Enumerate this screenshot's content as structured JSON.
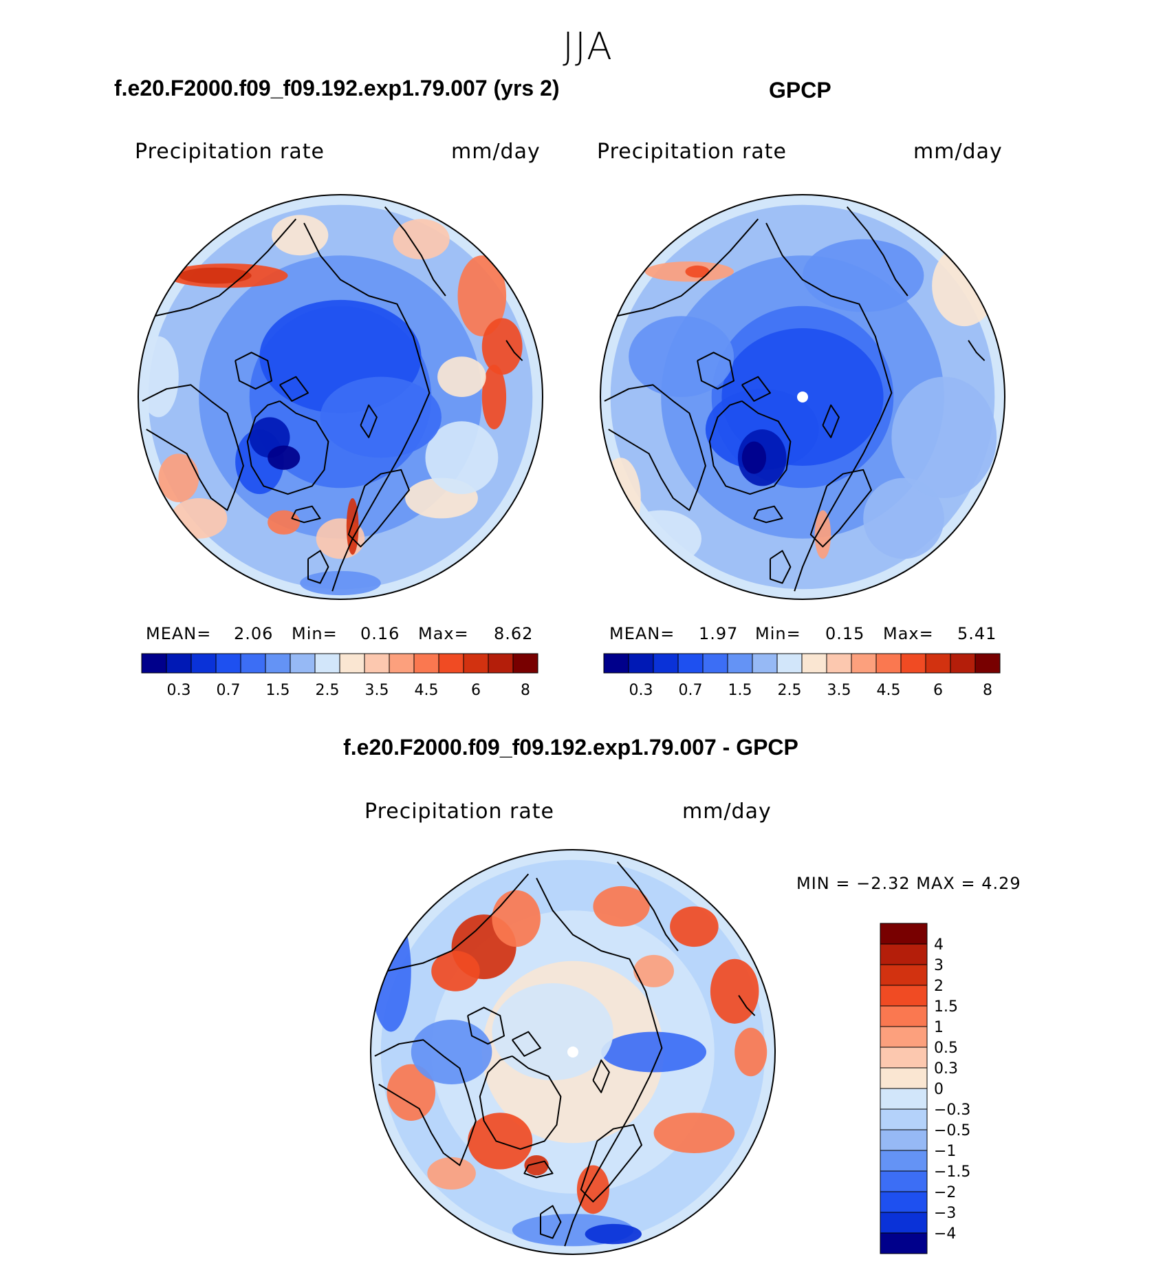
{
  "figure": {
    "season": "JJA",
    "panels": [
      {
        "id": "model",
        "case": "f.e20.F2000.f09_f09.192.exp1.79.007 (yrs 2)",
        "variable": "Precipitation  rate",
        "units": "mm/day",
        "mean_label": "MEAN=",
        "mean": "2.06",
        "min_label": "Min=",
        "min": "0.16",
        "max_label": "Max=",
        "max": "8.62"
      },
      {
        "id": "obs",
        "case": "GPCP",
        "variable": "Precipitation  rate",
        "units": "mm/day",
        "mean_label": "MEAN=",
        "mean": "1.97",
        "min_label": "Min=",
        "min": "0.15",
        "max_label": "Max=",
        "max": "5.41"
      }
    ],
    "diff": {
      "case": "f.e20.F2000.f09_f09.192.exp1.79.007 - GPCP",
      "variable": "Precipitation  rate",
      "units": "mm/day",
      "minmax": "MIN  =    −2.32  MAX  =     4.29"
    }
  },
  "chart_data": [
    {
      "type": "heatmap",
      "projection": "north-polar-stereographic",
      "title": "f.e20.F2000.f09_f09.192.exp1.79.007 (yrs 2)",
      "variable": "Precipitation rate",
      "units": "mm/day",
      "mean": 2.06,
      "min": 0.16,
      "max": 8.62,
      "contour_levels": [
        0.2,
        0.3,
        0.5,
        0.7,
        1,
        1.5,
        2,
        2.5,
        3,
        3.5,
        4,
        4.5,
        5,
        6,
        7,
        8
      ],
      "tick_labels": [
        "0.3",
        "0.7",
        "1.5",
        "2.5",
        "3.5",
        "4.5",
        "6",
        "8"
      ],
      "colors": [
        "#00008b",
        "#0019b5",
        "#0a32d8",
        "#1e50f0",
        "#3c6ef5",
        "#6493f5",
        "#96b9f5",
        "#d2e6fa",
        "#fae6d2",
        "#fcc8af",
        "#fca07d",
        "#fa7850",
        "#f04b23",
        "#d23210",
        "#b41e0a",
        "#780000"
      ]
    },
    {
      "type": "heatmap",
      "projection": "north-polar-stereographic",
      "title": "GPCP",
      "variable": "Precipitation rate",
      "units": "mm/day",
      "mean": 1.97,
      "min": 0.15,
      "max": 5.41,
      "contour_levels": [
        0.2,
        0.3,
        0.5,
        0.7,
        1,
        1.5,
        2,
        2.5,
        3,
        3.5,
        4,
        4.5,
        5,
        6,
        7,
        8
      ],
      "tick_labels": [
        "0.3",
        "0.7",
        "1.5",
        "2.5",
        "3.5",
        "4.5",
        "6",
        "8"
      ],
      "colors": [
        "#00008b",
        "#0019b5",
        "#0a32d8",
        "#1e50f0",
        "#3c6ef5",
        "#6493f5",
        "#96b9f5",
        "#d2e6fa",
        "#fae6d2",
        "#fcc8af",
        "#fca07d",
        "#fa7850",
        "#f04b23",
        "#d23210",
        "#b41e0a",
        "#780000"
      ]
    },
    {
      "type": "heatmap",
      "projection": "north-polar-stereographic",
      "title": "f.e20.F2000.f09_f09.192.exp1.79.007 - GPCP",
      "variable": "Precipitation rate",
      "units": "mm/day",
      "min": -2.32,
      "max": 4.29,
      "contour_levels": [
        -4,
        -3,
        -2,
        -1.5,
        -1,
        -0.5,
        -0.3,
        0,
        0.3,
        0.5,
        1,
        1.5,
        2,
        3,
        4
      ],
      "tick_labels": [
        "4",
        "3",
        "2",
        "1.5",
        "1",
        "0.5",
        "0.3",
        "0",
        "−0.3",
        "−0.5",
        "−1",
        "−1.5",
        "−2",
        "−3",
        "−4"
      ],
      "colors": [
        "#780000",
        "#b41e0a",
        "#d23210",
        "#f04b23",
        "#fa7850",
        "#fca07d",
        "#fcc8af",
        "#fae6d2",
        "#d2e6fa",
        "#b4d2fa",
        "#96b9f5",
        "#6493f5",
        "#3c6ef5",
        "#1e50f0",
        "#0a32d8",
        "#00008b"
      ]
    }
  ]
}
